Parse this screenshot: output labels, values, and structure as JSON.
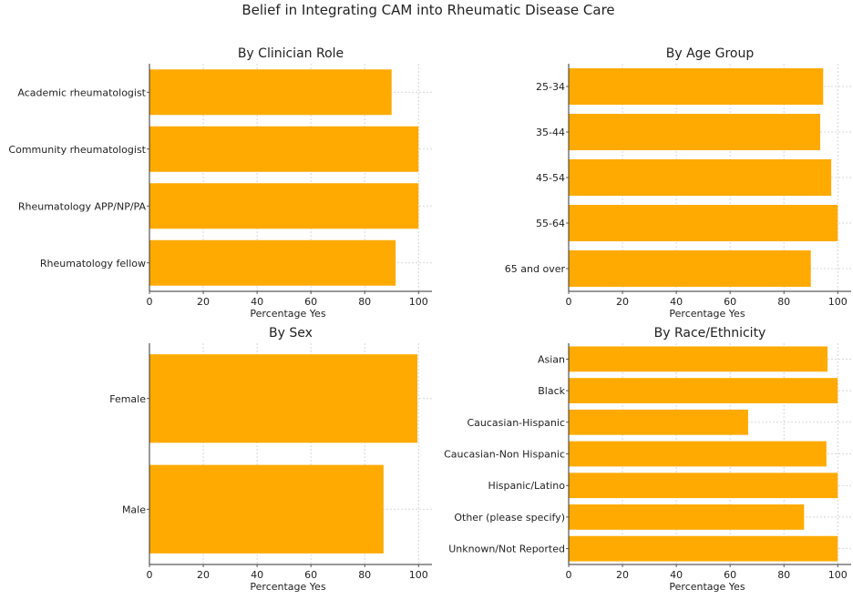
{
  "figure_title": "Belief in Integrating CAM into Rheumatic Disease Care",
  "bar_color": "#FFAA00",
  "chart_data": [
    {
      "type": "bar",
      "orientation": "horizontal",
      "title": "By Clinician Role",
      "xlabel": "Percentage Yes",
      "ylabel": "",
      "xlim": [
        0,
        105
      ],
      "xticks": [
        0,
        20,
        40,
        60,
        80,
        100
      ],
      "grid": true,
      "categories": [
        "Academic rheumatologist",
        "Community rheumatologist",
        "Rheumatology APP/NP/PA",
        "Rheumatology fellow"
      ],
      "values": [
        90.0,
        100,
        100,
        91.5
      ]
    },
    {
      "type": "bar",
      "orientation": "horizontal",
      "title": "By Age Group",
      "xlabel": "Percentage Yes",
      "ylabel": "",
      "xlim": [
        0,
        105
      ],
      "xticks": [
        0,
        20,
        40,
        60,
        80,
        100
      ],
      "grid": true,
      "categories": [
        "25-34",
        "35-44",
        "45-54",
        "55-64",
        "65 and over"
      ],
      "values": [
        94.6,
        93.5,
        97.6,
        100,
        90.0
      ]
    },
    {
      "type": "bar",
      "orientation": "horizontal",
      "title": "By Sex",
      "xlabel": "Percentage Yes",
      "ylabel": "",
      "xlim": [
        0,
        105
      ],
      "xticks": [
        0,
        20,
        40,
        60,
        80,
        100
      ],
      "grid": true,
      "categories": [
        "Female",
        "Male"
      ],
      "values": [
        99.6,
        87.0
      ]
    },
    {
      "type": "bar",
      "orientation": "horizontal",
      "title": "By Race/Ethnicity",
      "xlabel": "Percentage Yes",
      "ylabel": "",
      "xlim": [
        0,
        105
      ],
      "xticks": [
        0,
        20,
        40,
        60,
        80,
        100
      ],
      "grid": true,
      "categories": [
        "Asian",
        "Black",
        "Caucasian-Hispanic",
        "Caucasian-Non Hispanic",
        "Hispanic/Latino",
        "Other (please specify)",
        "Unknown/Not Reported"
      ],
      "values": [
        96.2,
        100,
        66.7,
        95.8,
        100,
        87.5,
        100
      ]
    }
  ]
}
